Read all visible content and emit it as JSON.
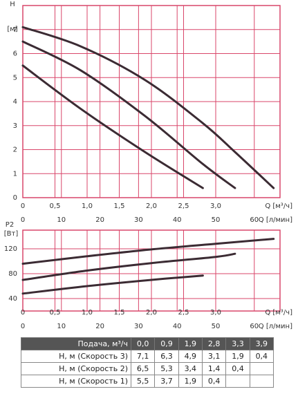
{
  "chart_data": [
    {
      "type": "line",
      "y_label": "H",
      "y_unit": "[м]",
      "x_label": "Q [м³/ч]",
      "x2_label": "Q [л/мин]",
      "xlim": [
        0,
        4
      ],
      "x2lim": [
        0,
        66.67
      ],
      "ylim": [
        0,
        8
      ],
      "xticks": [
        0,
        {
          "value": 0.5,
          "label": "0,5"
        },
        {
          "value": 1,
          "label": "1,0"
        },
        {
          "value": 1.5,
          "label": "1,5"
        },
        {
          "value": 2,
          "label": "2,0"
        },
        {
          "value": 2.5,
          "label": "2,5"
        },
        {
          "value": 3,
          "label": "3,0"
        }
      ],
      "x2ticks": [
        0,
        10,
        20,
        30,
        40,
        50,
        60
      ],
      "yticks": [
        0,
        1,
        2,
        3,
        4,
        5,
        6,
        7
      ],
      "grid": true,
      "grid_color": "#d9466a",
      "series": [
        {
          "color": "#3b2b33",
          "x": [
            0,
            0.9,
            1.9,
            2.8,
            3.3,
            3.9
          ],
          "values": [
            7.1,
            6.3,
            4.9,
            3.1,
            1.9,
            0.4
          ]
        },
        {
          "color": "#3b2b33",
          "x": [
            0,
            0.9,
            1.9,
            2.8,
            3.3
          ],
          "values": [
            6.5,
            5.3,
            3.4,
            1.4,
            0.4
          ]
        },
        {
          "color": "#3b2b33",
          "x": [
            0,
            0.9,
            1.9,
            2.8
          ],
          "values": [
            5.5,
            3.7,
            1.9,
            0.4
          ]
        }
      ]
    },
    {
      "type": "line",
      "y_label": "P2",
      "y_unit": "[Вт]",
      "x_label": "Q [м³/ч]",
      "x2_label": "Q [л/мин]",
      "xlim": [
        0,
        4
      ],
      "x2lim": [
        0,
        66.67
      ],
      "ylim": [
        20,
        150
      ],
      "xticks": [
        0,
        {
          "value": 0.5,
          "label": "0,5"
        },
        {
          "value": 1,
          "label": "1,0"
        },
        {
          "value": 1.5,
          "label": "1,5"
        },
        {
          "value": 2,
          "label": "2,0"
        },
        {
          "value": 2.5,
          "label": "2,5"
        },
        {
          "value": 3,
          "label": "3,0"
        }
      ],
      "x2ticks": [
        0,
        10,
        20,
        30,
        40,
        50,
        60
      ],
      "yticks": [
        40,
        80,
        120
      ],
      "grid": true,
      "grid_color": "#d9466a",
      "series": [
        {
          "color": "#3b2b33",
          "x": [
            0,
            1,
            2,
            3,
            3.9
          ],
          "values": [
            96,
            108,
            119,
            128,
            136
          ]
        },
        {
          "color": "#3b2b33",
          "x": [
            0,
            1,
            2,
            3,
            3.3
          ],
          "values": [
            70,
            85,
            97,
            107,
            112
          ]
        },
        {
          "color": "#3b2b33",
          "x": [
            0,
            1,
            2,
            2.8
          ],
          "values": [
            48,
            60,
            70,
            77
          ]
        }
      ]
    }
  ],
  "table": {
    "header": [
      "Подача, м³/ч",
      "0,0",
      "0,9",
      "1,9",
      "2,8",
      "3,3",
      "3,9"
    ],
    "rows": [
      [
        "Н, м (Скорость 3)",
        "7,1",
        "6,3",
        "4,9",
        "3,1",
        "1,9",
        "0,4"
      ],
      [
        "Н, м (Скорость 2)",
        "6,5",
        "5,3",
        "3,4",
        "1,4",
        "0,4",
        null
      ],
      [
        "Н, м (Скорость 1)",
        "5,5",
        "3,7",
        "1,9",
        "0,4",
        null,
        null
      ]
    ]
  }
}
